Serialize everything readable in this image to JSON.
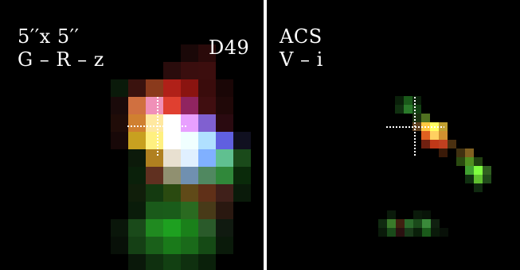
{
  "left_panel": {
    "scale_text": "5′′x 5′′",
    "bands_text": "G – R – z",
    "object_id": "D49",
    "crosshair_color": "#ffffff"
  },
  "right_panel": {
    "instrument": "ACS",
    "bands_text": "V – i",
    "crosshair_color": "#ffffff"
  },
  "colors": {
    "background": "#000000",
    "divider": "#ffffff"
  }
}
